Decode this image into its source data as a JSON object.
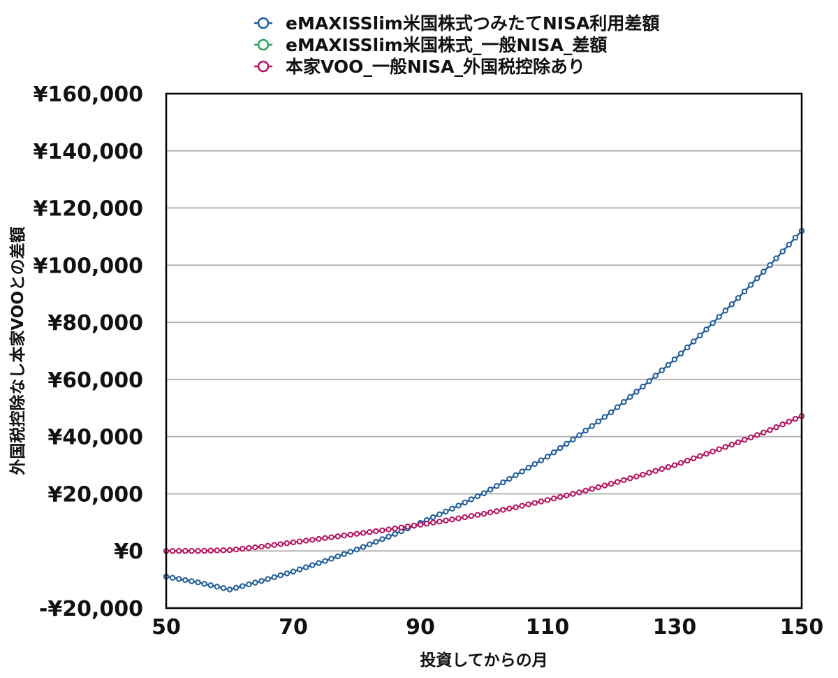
{
  "chart_data": {
    "type": "line",
    "xlabel": "投資してからの月",
    "ylabel": "外国税控除なし本家VOOとの差額",
    "xlim": [
      50,
      150
    ],
    "ylim": [
      -20000,
      160000
    ],
    "x_ticks": [
      50,
      70,
      90,
      110,
      130,
      150
    ],
    "y_ticks": [
      -20000,
      0,
      20000,
      40000,
      60000,
      80000,
      100000,
      120000,
      140000,
      160000
    ],
    "y_tick_labels": [
      "-¥20,000",
      "¥0",
      "¥20,000",
      "¥40,000",
      "¥60,000",
      "¥80,000",
      "¥100,000",
      "¥120,000",
      "¥140,000",
      "¥160,000"
    ],
    "grid": "horizontal",
    "legend_position": "top",
    "series": [
      {
        "name": "eMAXISSlim米国株式つみたてNISA利用差額",
        "color": "#1f5c99",
        "anchors_x": [
          50,
          55,
          60,
          65,
          70,
          75,
          80,
          85,
          90,
          95,
          100,
          105,
          110,
          115,
          120,
          125,
          130,
          135,
          140,
          145,
          150
        ],
        "anchors_y": [
          -9000,
          -11000,
          -13500,
          -10500,
          -7200,
          -3500,
          500,
          5000,
          9800,
          14800,
          20200,
          26500,
          33000,
          40500,
          48500,
          57500,
          67000,
          77500,
          88500,
          100000,
          112000
        ]
      },
      {
        "name": "eMAXISSlim米国株式_一般NISA_差額",
        "color": "#2ca05a",
        "anchors_x": [],
        "anchors_y": []
      },
      {
        "name": "本家VOO_一般NISA_外国税控除あり",
        "color": "#b5125f",
        "anchors_x": [
          50,
          55,
          60,
          65,
          70,
          75,
          80,
          85,
          90,
          95,
          100,
          105,
          110,
          115,
          120,
          125,
          130,
          135,
          140,
          145,
          150
        ],
        "anchors_y": [
          0,
          0,
          300,
          1500,
          3000,
          4500,
          6000,
          7500,
          9200,
          11000,
          13000,
          15300,
          17800,
          20500,
          23500,
          26700,
          30000,
          34000,
          38000,
          42300,
          47200
        ]
      }
    ]
  }
}
